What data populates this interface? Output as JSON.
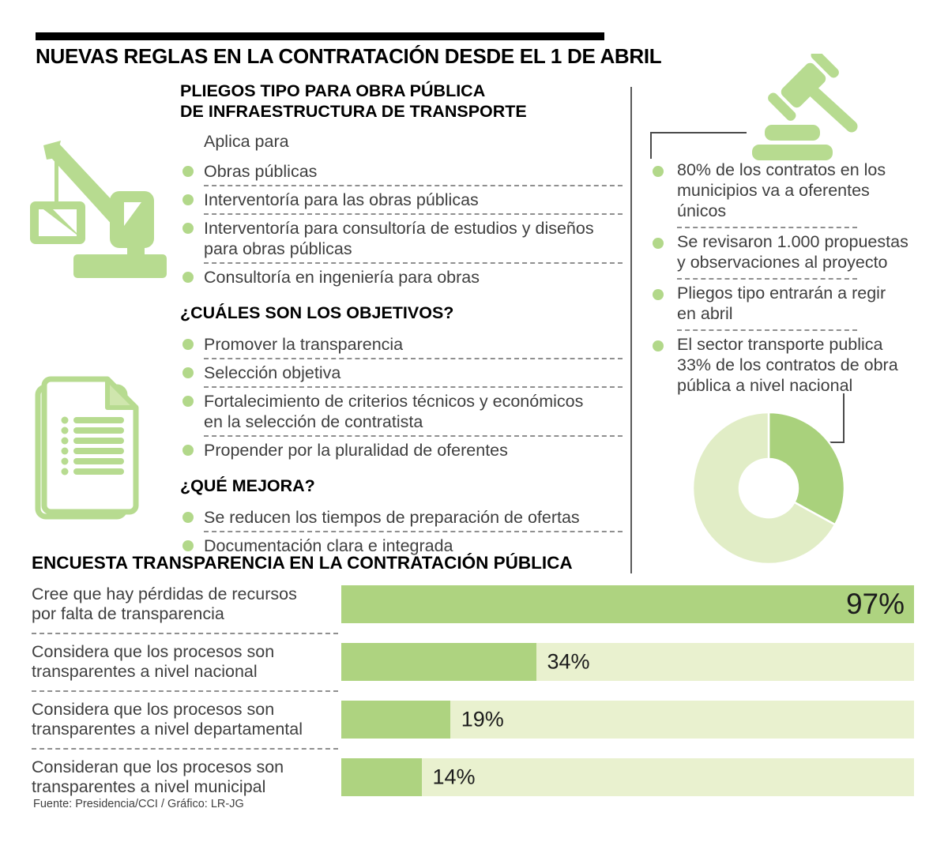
{
  "title": "NUEVAS REGLAS EN LA CONTRATACIÓN DESDE EL 1 DE ABRIL",
  "colors": {
    "green": "#aed380",
    "green_icon": "#b7db90",
    "green_bullet": "#b2d88a",
    "track_light": "#e9f1cf",
    "donut_dark": "#a9d17c",
    "donut_light": "#e1edc6",
    "text": "#3f3f3f",
    "heading": "#000000"
  },
  "icons": {
    "left_top": "construction-crane",
    "left_bottom": "stacked-documents",
    "right_top": "gavel"
  },
  "left": {
    "heading": "PLIEGOS TIPO PARA OBRA PÚBLICA\nDE INFRAESTRUCTURA DE TRANSPORTE",
    "apply_label": "Aplica para",
    "apply_items": [
      "Obras públicas",
      "Interventoría para las obras públicas",
      "Interventoría para consultoría de estudios y diseños\npara obras públicas",
      "Consultoría en ingeniería para obras"
    ],
    "objectives_heading": "¿CUÁLES SON LOS OBJETIVOS?",
    "objectives_items": [
      "Promover la transparencia",
      "Selección objetiva",
      "Fortalecimiento de criterios técnicos y económicos\nen la selección de contratista",
      "Propender por la pluralidad de oferentes"
    ],
    "improves_heading": "¿QUÉ MEJORA?",
    "improves_items": [
      "Se reducen los tiempos de preparación de ofertas",
      "Documentación clara e integrada"
    ]
  },
  "right": {
    "facts": [
      "80% de los contratos en los\nmunicipios va a oferentes\núnicos",
      "Se revisaron 1.000 propuestas\ny observaciones al proyecto",
      "Pliegos tipo entrarán a regir\nen abril",
      "El sector transporte publica\n33% de los contratos de obra\npública a nivel nacional"
    ]
  },
  "chart_data": [
    {
      "type": "pie",
      "subtype": "donut",
      "values": [
        33,
        67
      ],
      "highlighted_value": 33,
      "callout_text": "El sector transporte publica 33% de los contratos de obra pública a nivel nacional",
      "colors": [
        "#a9d17c",
        "#e1edc6"
      ],
      "start_angle_deg": -90,
      "legend": "none"
    },
    {
      "type": "bar",
      "orientation": "horizontal",
      "title": "ENCUESTA TRANSPARENCIA EN LA CONTRATACIÓN PÚBLICA",
      "categories": [
        "Cree que hay pérdidas de recursos\npor falta de transparencia",
        "Considera que los procesos son\ntransparentes a nivel nacional",
        "Considera que los procesos son\ntransparentes a nivel departamental",
        "Consideran que los procesos son\ntransparentes a nivel municipal"
      ],
      "values": [
        97,
        34,
        19,
        14
      ],
      "value_labels": [
        "97%",
        "34%",
        "19%",
        "14%"
      ],
      "xlim": [
        0,
        100
      ],
      "grid": false,
      "fill_display_pct": [
        100,
        34,
        19,
        14
      ],
      "label_inside": [
        true,
        false,
        false,
        false
      ]
    }
  ],
  "footer": "Fuente: Presidencia/CCI / Gráfico: LR-JG"
}
